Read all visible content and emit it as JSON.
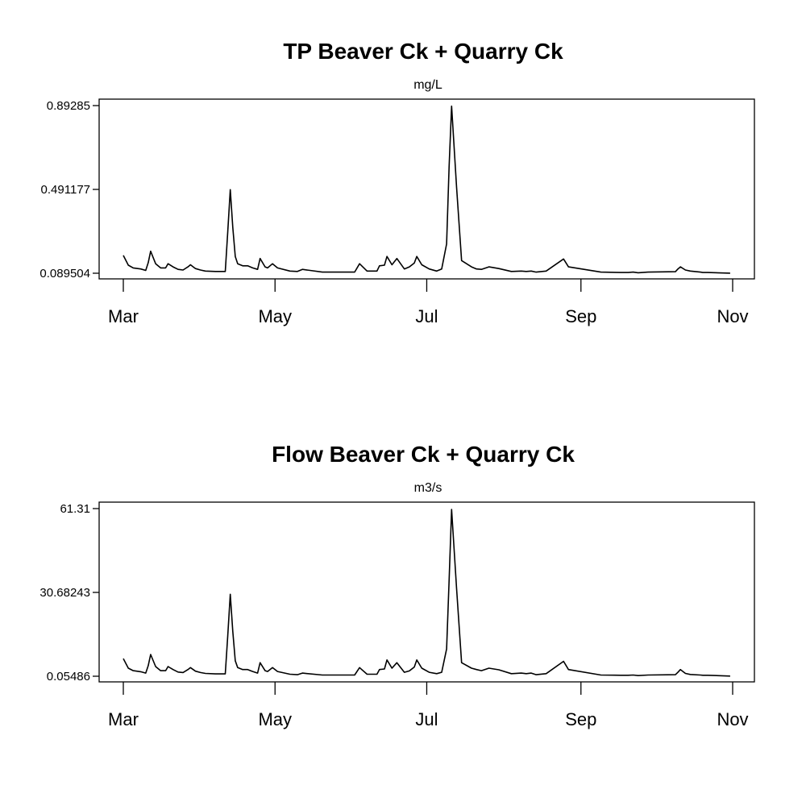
{
  "chart_data": [
    {
      "type": "line",
      "title": "TP Beaver Ck + Quarry Ck",
      "subtitle": "mg/L",
      "xlabel": "",
      "ylabel": "",
      "x_tick_labels": [
        "Mar",
        "May",
        "Jul",
        "Sep",
        "Nov"
      ],
      "x_tick_dates": [
        "2019-03-01",
        "2019-05-01",
        "2019-07-01",
        "2019-09-01",
        "2019-11-01"
      ],
      "y_tick_labels": [
        "0.089504",
        "0.491177",
        "0.89285"
      ],
      "ylim": [
        0.089504,
        0.89285
      ],
      "grid": false,
      "series": [
        {
          "x": [
            "2019-03-01",
            "2019-03-03",
            "2019-03-05",
            "2019-03-08",
            "2019-03-10",
            "2019-03-11",
            "2019-03-12",
            "2019-03-14",
            "2019-03-16",
            "2019-03-18",
            "2019-03-19",
            "2019-03-21",
            "2019-03-23",
            "2019-03-25",
            "2019-03-27",
            "2019-03-28",
            "2019-03-30",
            "2019-04-01",
            "2019-04-03",
            "2019-04-07",
            "2019-04-11",
            "2019-04-12",
            "2019-04-13",
            "2019-04-14",
            "2019-04-15",
            "2019-04-16",
            "2019-04-18",
            "2019-04-20",
            "2019-04-22",
            "2019-04-24",
            "2019-04-25",
            "2019-04-27",
            "2019-04-28",
            "2019-04-30",
            "2019-05-02",
            "2019-05-07",
            "2019-05-10",
            "2019-05-12",
            "2019-05-20",
            "2019-05-26",
            "2019-06-02",
            "2019-06-04",
            "2019-06-07",
            "2019-06-11",
            "2019-06-12",
            "2019-06-14",
            "2019-06-15",
            "2019-06-17",
            "2019-06-19",
            "2019-06-22",
            "2019-06-24",
            "2019-06-26",
            "2019-06-27",
            "2019-06-29",
            "2019-07-02",
            "2019-07-05",
            "2019-07-07",
            "2019-07-09",
            "2019-07-10",
            "2019-07-11",
            "2019-07-13",
            "2019-07-15",
            "2019-07-19",
            "2019-07-21",
            "2019-07-23",
            "2019-07-26",
            "2019-07-30",
            "2019-08-04",
            "2019-08-08",
            "2019-08-10",
            "2019-08-12",
            "2019-08-14",
            "2019-08-18",
            "2019-08-25",
            "2019-08-27",
            "2019-09-09",
            "2019-09-17",
            "2019-09-20",
            "2019-09-22",
            "2019-09-24",
            "2019-09-28",
            "2019-10-09",
            "2019-10-10",
            "2019-10-11",
            "2019-10-13",
            "2019-10-15",
            "2019-10-19",
            "2019-10-20",
            "2019-10-22",
            "2019-10-31"
          ],
          "y": [
            0.175,
            0.128,
            0.115,
            0.11,
            0.103,
            0.14,
            0.195,
            0.135,
            0.115,
            0.115,
            0.135,
            0.12,
            0.108,
            0.105,
            0.12,
            0.13,
            0.112,
            0.105,
            0.1,
            0.098,
            0.098,
            0.29,
            0.49,
            0.31,
            0.17,
            0.135,
            0.125,
            0.125,
            0.115,
            0.108,
            0.16,
            0.12,
            0.115,
            0.135,
            0.115,
            0.1,
            0.098,
            0.108,
            0.095,
            0.095,
            0.095,
            0.135,
            0.1,
            0.1,
            0.125,
            0.128,
            0.17,
            0.13,
            0.16,
            0.11,
            0.12,
            0.138,
            0.17,
            0.13,
            0.11,
            0.1,
            0.11,
            0.23,
            0.6,
            0.89,
            0.5,
            0.15,
            0.12,
            0.11,
            0.108,
            0.12,
            0.112,
            0.098,
            0.1,
            0.098,
            0.1,
            0.095,
            0.1,
            0.158,
            0.12,
            0.095,
            0.093,
            0.093,
            0.095,
            0.092,
            0.095,
            0.097,
            0.11,
            0.12,
            0.105,
            0.1,
            0.095,
            0.093,
            0.093,
            0.09
          ]
        }
      ]
    },
    {
      "type": "line",
      "title": "Flow Beaver Ck + Quarry Ck",
      "subtitle": "m3/s",
      "xlabel": "",
      "ylabel": "",
      "x_tick_labels": [
        "Mar",
        "May",
        "Jul",
        "Sep",
        "Nov"
      ],
      "x_tick_dates": [
        "2019-03-01",
        "2019-05-01",
        "2019-07-01",
        "2019-09-01",
        "2019-11-01"
      ],
      "y_tick_labels": [
        "0.05486",
        "30.68243",
        "61.31"
      ],
      "ylim": [
        0.05486,
        61.31
      ],
      "grid": false,
      "series": [
        {
          "x": [
            "2019-03-01",
            "2019-03-03",
            "2019-03-05",
            "2019-03-08",
            "2019-03-10",
            "2019-03-11",
            "2019-03-12",
            "2019-03-14",
            "2019-03-16",
            "2019-03-18",
            "2019-03-19",
            "2019-03-21",
            "2019-03-23",
            "2019-03-25",
            "2019-03-27",
            "2019-03-28",
            "2019-03-30",
            "2019-04-01",
            "2019-04-03",
            "2019-04-07",
            "2019-04-11",
            "2019-04-12",
            "2019-04-13",
            "2019-04-14",
            "2019-04-15",
            "2019-04-16",
            "2019-04-18",
            "2019-04-20",
            "2019-04-22",
            "2019-04-24",
            "2019-04-25",
            "2019-04-27",
            "2019-04-28",
            "2019-04-30",
            "2019-05-02",
            "2019-05-07",
            "2019-05-10",
            "2019-05-12",
            "2019-05-20",
            "2019-05-26",
            "2019-06-02",
            "2019-06-04",
            "2019-06-07",
            "2019-06-11",
            "2019-06-12",
            "2019-06-14",
            "2019-06-15",
            "2019-06-17",
            "2019-06-19",
            "2019-06-22",
            "2019-06-24",
            "2019-06-26",
            "2019-06-27",
            "2019-06-29",
            "2019-07-02",
            "2019-07-05",
            "2019-07-07",
            "2019-07-09",
            "2019-07-10",
            "2019-07-11",
            "2019-07-13",
            "2019-07-15",
            "2019-07-19",
            "2019-07-21",
            "2019-07-23",
            "2019-07-26",
            "2019-07-30",
            "2019-08-04",
            "2019-08-08",
            "2019-08-10",
            "2019-08-12",
            "2019-08-14",
            "2019-08-18",
            "2019-08-25",
            "2019-08-27",
            "2019-09-09",
            "2019-09-17",
            "2019-09-20",
            "2019-09-22",
            "2019-09-24",
            "2019-09-28",
            "2019-10-09",
            "2019-10-10",
            "2019-10-11",
            "2019-10-13",
            "2019-10-15",
            "2019-10-19",
            "2019-10-20",
            "2019-10-22",
            "2019-10-31"
          ],
          "y": [
            6.5,
            3.0,
            2.1,
            1.7,
            1.2,
            3.9,
            8.0,
            3.6,
            2.1,
            2.1,
            3.6,
            2.5,
            1.6,
            1.4,
            2.5,
            3.2,
            1.9,
            1.4,
            1.1,
            0.9,
            0.9,
            15.0,
            30.0,
            16.5,
            5.7,
            3.2,
            2.5,
            2.5,
            1.8,
            1.2,
            5.0,
            2.1,
            1.8,
            3.2,
            1.8,
            0.8,
            0.6,
            1.2,
            0.5,
            0.5,
            0.5,
            3.2,
            0.8,
            0.8,
            2.5,
            2.7,
            6.0,
            3.0,
            5.0,
            1.5,
            2.0,
            3.4,
            6.0,
            3.0,
            1.5,
            1.0,
            1.5,
            10.0,
            35.0,
            61.0,
            32.0,
            5.0,
            3.0,
            2.5,
            2.1,
            3.0,
            2.4,
            1.0,
            1.2,
            1.0,
            1.2,
            0.6,
            1.0,
            5.5,
            2.5,
            0.5,
            0.4,
            0.4,
            0.5,
            0.3,
            0.5,
            0.6,
            1.5,
            2.5,
            1.1,
            0.7,
            0.5,
            0.4,
            0.4,
            0.1
          ]
        }
      ]
    }
  ]
}
